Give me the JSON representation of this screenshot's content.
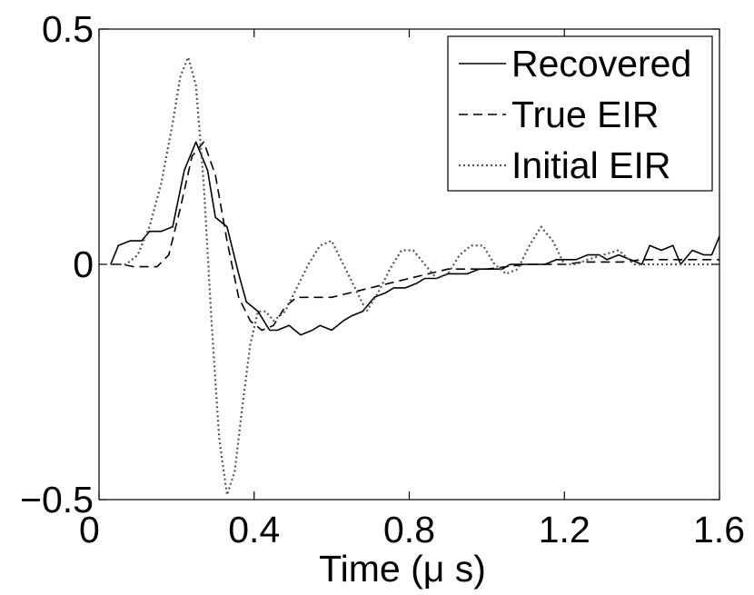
{
  "chart_data": {
    "type": "line",
    "title": "",
    "xlabel": "Time (μ s)",
    "ylabel": "",
    "xlim": [
      0,
      1.6
    ],
    "ylim": [
      -0.5,
      0.5
    ],
    "xticks": [
      0,
      0.4,
      0.8,
      1.2,
      1.6
    ],
    "xtick_labels": [
      "0",
      "0.4",
      "0.8",
      "1.2",
      "1.6"
    ],
    "yticks": [
      -0.5,
      0,
      0.5
    ],
    "ytick_labels": [
      "−0.5",
      "0",
      "0.5"
    ],
    "grid": false,
    "legend_position": "top-right",
    "series": [
      {
        "name": "Recovered",
        "line_style": "solid",
        "color": "#000000",
        "x": [
          0.03,
          0.05,
          0.08,
          0.11,
          0.13,
          0.16,
          0.19,
          0.22,
          0.25,
          0.28,
          0.3,
          0.33,
          0.36,
          0.38,
          0.41,
          0.44,
          0.46,
          0.49,
          0.52,
          0.55,
          0.57,
          0.6,
          0.63,
          0.65,
          0.68,
          0.71,
          0.74,
          0.76,
          0.79,
          0.82,
          0.84,
          0.87,
          0.9,
          0.93,
          0.95,
          0.98,
          1.01,
          1.04,
          1.06,
          1.09,
          1.12,
          1.15,
          1.18,
          1.2,
          1.23,
          1.26,
          1.29,
          1.31,
          1.34,
          1.37,
          1.4,
          1.42,
          1.45,
          1.48,
          1.5,
          1.53,
          1.56,
          1.58,
          1.6
        ],
        "y": [
          0.0,
          0.04,
          0.05,
          0.05,
          0.07,
          0.07,
          0.08,
          0.2,
          0.26,
          0.2,
          0.1,
          0.08,
          -0.02,
          -0.08,
          -0.1,
          -0.14,
          -0.14,
          -0.13,
          -0.15,
          -0.14,
          -0.13,
          -0.14,
          -0.12,
          -0.11,
          -0.1,
          -0.07,
          -0.06,
          -0.05,
          -0.05,
          -0.04,
          -0.03,
          -0.03,
          -0.02,
          -0.02,
          -0.02,
          -0.01,
          -0.01,
          -0.01,
          0.0,
          0.0,
          0.0,
          0.0,
          0.01,
          0.01,
          0.01,
          0.02,
          0.02,
          0.01,
          0.02,
          0.01,
          0.0,
          0.04,
          0.03,
          0.04,
          0.0,
          0.03,
          0.02,
          0.02,
          0.06
        ]
      },
      {
        "name": "True EIR",
        "line_style": "dashed",
        "color": "#000000",
        "x": [
          0.03,
          0.06,
          0.09,
          0.12,
          0.15,
          0.18,
          0.21,
          0.24,
          0.27,
          0.3,
          0.33,
          0.36,
          0.39,
          0.42,
          0.45,
          0.48,
          0.51,
          0.55,
          0.6,
          0.65,
          0.7,
          0.75,
          0.8,
          0.85,
          0.9,
          0.95,
          1.0,
          1.05,
          1.1,
          1.15,
          1.2,
          1.25,
          1.3,
          1.35,
          1.4,
          1.45,
          1.5,
          1.55,
          1.6
        ],
        "y": [
          0.0,
          0.0,
          -0.005,
          -0.005,
          -0.005,
          0.02,
          0.12,
          0.23,
          0.26,
          0.19,
          0.05,
          -0.07,
          -0.12,
          -0.14,
          -0.13,
          -0.09,
          -0.07,
          -0.07,
          -0.07,
          -0.06,
          -0.05,
          -0.04,
          -0.03,
          -0.02,
          -0.01,
          -0.01,
          -0.01,
          -0.005,
          0.0,
          0.0,
          0.0,
          0.005,
          0.005,
          0.005,
          0.01,
          0.01,
          0.01,
          0.01,
          0.01
        ]
      },
      {
        "name": "Initial EIR",
        "line_style": "dotted",
        "color": "#555555",
        "x": [
          0.03,
          0.07,
          0.1,
          0.13,
          0.16,
          0.19,
          0.21,
          0.23,
          0.25,
          0.27,
          0.29,
          0.31,
          0.33,
          0.35,
          0.37,
          0.39,
          0.41,
          0.43,
          0.45,
          0.48,
          0.51,
          0.54,
          0.57,
          0.6,
          0.63,
          0.66,
          0.69,
          0.72,
          0.75,
          0.78,
          0.81,
          0.84,
          0.87,
          0.9,
          0.93,
          0.96,
          0.99,
          1.02,
          1.05,
          1.08,
          1.11,
          1.14,
          1.17,
          1.2,
          1.23,
          1.26,
          1.3,
          1.34,
          1.38,
          1.42,
          1.46,
          1.5,
          1.55,
          1.6
        ],
        "y": [
          0.0,
          0.0,
          0.02,
          0.08,
          0.17,
          0.3,
          0.4,
          0.44,
          0.38,
          0.17,
          -0.12,
          -0.37,
          -0.49,
          -0.44,
          -0.3,
          -0.17,
          -0.1,
          -0.1,
          -0.12,
          -0.1,
          -0.05,
          0.0,
          0.04,
          0.05,
          0.0,
          -0.05,
          -0.1,
          -0.06,
          -0.01,
          0.03,
          0.03,
          0.0,
          -0.03,
          -0.02,
          0.02,
          0.04,
          0.04,
          0.0,
          -0.02,
          -0.01,
          0.04,
          0.08,
          0.05,
          0.0,
          0.0,
          0.01,
          0.02,
          0.03,
          0.0,
          0.0,
          0.0,
          0.0,
          0.0,
          0.0
        ]
      }
    ]
  }
}
